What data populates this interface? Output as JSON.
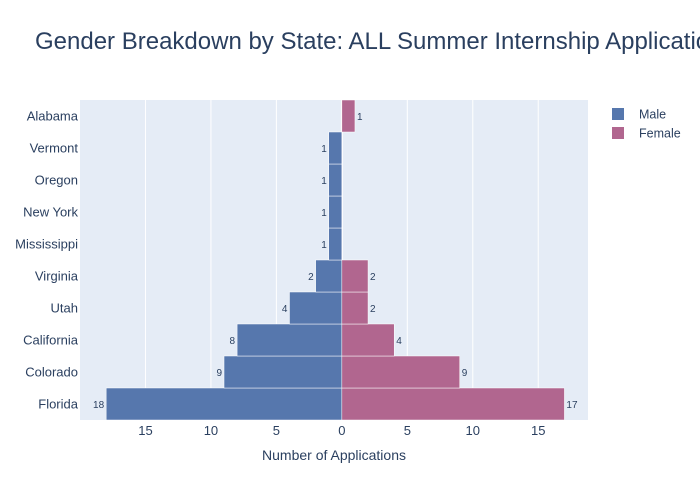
{
  "chart_data": {
    "type": "bar",
    "orientation": "horizontal",
    "title": "Gender Breakdown by State: ALL Summer Internship Applications",
    "xlabel": "Number of Applications",
    "ylabel": "",
    "categories": [
      "Florida",
      "Colorado",
      "California",
      "Utah",
      "Virginia",
      "Mississippi",
      "New York",
      "Oregon",
      "Vermont",
      "Alabama"
    ],
    "series": [
      {
        "name": "Male",
        "color": "#5677ad",
        "direction": "left",
        "values": [
          18,
          9,
          8,
          4,
          2,
          1,
          1,
          1,
          1,
          null
        ]
      },
      {
        "name": "Female",
        "color": "#b1668f",
        "direction": "right",
        "values": [
          17,
          9,
          4,
          2,
          2,
          null,
          null,
          null,
          null,
          1
        ]
      }
    ],
    "xlim": [
      -20,
      18.8
    ],
    "xtick_labels": [
      "15",
      "10",
      "5",
      "0",
      "5",
      "10",
      "15"
    ],
    "xtick_values": [
      -15,
      -10,
      -5,
      0,
      5,
      10,
      15
    ],
    "grid": true,
    "legend_position": "top-right",
    "plot_background": "#e5ecf6"
  }
}
